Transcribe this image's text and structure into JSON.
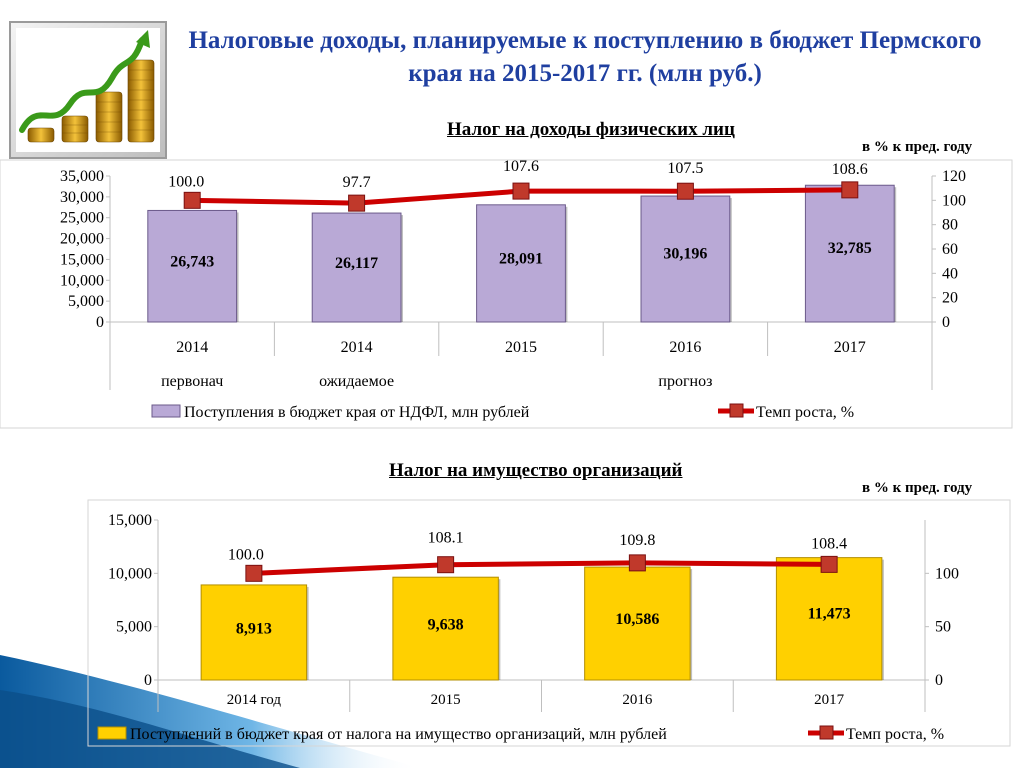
{
  "title": "Налоговые доходы, планируемые к поступлению в бюджет Пермского края на 2015-2017 гг. (млн руб.)",
  "logo": {
    "icon": "coin-stacks-growth-icon"
  },
  "colors": {
    "title": "#1f3fa0",
    "line": "#cc0000",
    "marker": "#c0392b",
    "bar1": "#b9a9d6",
    "bar2": "#ffd000"
  },
  "chart_data": [
    {
      "type": "bar",
      "title": "Налог на доходы физических лиц",
      "secondary_axis_label": "в % к пред. году",
      "categories": [
        "2014",
        "2014",
        "2015",
        "2016",
        "2017"
      ],
      "category_groups": [
        "первонач",
        "ожидаемое",
        "прогноз"
      ],
      "series": [
        {
          "name": "Поступления в бюджет края от НДФЛ, млн рублей",
          "type": "bar",
          "axis": "left",
          "values": [
            26743,
            26117,
            28091,
            30196,
            32785
          ],
          "labels": [
            "26,743",
            "26,117",
            "28,091",
            "30,196",
            "32,785"
          ]
        },
        {
          "name": "Темп роста, %",
          "type": "line",
          "axis": "right",
          "values": [
            100.0,
            97.7,
            107.6,
            107.5,
            108.6
          ],
          "labels": [
            "100.0",
            "97.7",
            "107.6",
            "107.5",
            "108.6"
          ]
        }
      ],
      "ylim": [
        0,
        35000
      ],
      "yticks": [
        "0",
        "5,000",
        "10,000",
        "15,000",
        "20,000",
        "25,000",
        "30,000",
        "35,000"
      ],
      "y2lim": [
        0,
        120
      ],
      "y2ticks": [
        "0",
        "20",
        "40",
        "60",
        "80",
        "100",
        "120"
      ],
      "legend": "bottom"
    },
    {
      "type": "bar",
      "title": "Налог на имущество организаций",
      "secondary_axis_label": "в % к пред. году",
      "categories": [
        "2014 год",
        "2015",
        "2016",
        "2017"
      ],
      "series": [
        {
          "name": "Поступлений в бюджет  края от налога на имущество организаций, млн рублей",
          "type": "bar",
          "axis": "left",
          "values": [
            8913,
            9638,
            10586,
            11473
          ],
          "labels": [
            "8,913",
            "9,638",
            "10,586",
            "11,473"
          ]
        },
        {
          "name": "Темп роста, %",
          "type": "line",
          "axis": "right",
          "values": [
            100.0,
            108.1,
            109.8,
            108.4
          ],
          "labels": [
            "100.0",
            "108.1",
            "109.8",
            "108.4"
          ]
        }
      ],
      "ylim": [
        0,
        15000
      ],
      "yticks": [
        "0",
        "5,000",
        "10,000",
        "15,000"
      ],
      "y2lim": [
        0,
        150
      ],
      "y2ticks": [
        "0",
        "50",
        "100"
      ],
      "legend": "bottom"
    }
  ]
}
